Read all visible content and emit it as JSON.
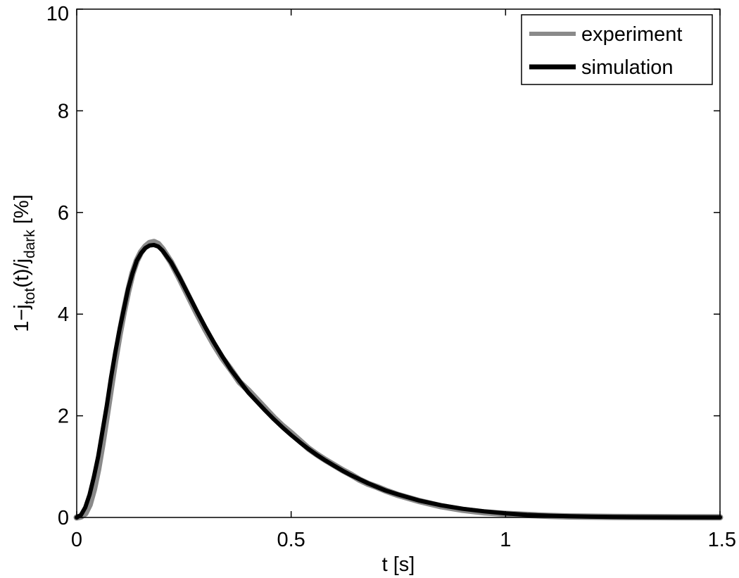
{
  "chart_data": {
    "type": "line",
    "title": "",
    "xlabel": "t [s]",
    "ylabel": {
      "parts": [
        "1−j",
        "tot",
        "(t)/j",
        "dark",
        " [%]"
      ]
    },
    "xlim": [
      0,
      1.5
    ],
    "ylim": [
      0,
      10
    ],
    "xticks": [
      0,
      0.5,
      1,
      1.5
    ],
    "xtick_labels": [
      "0",
      "0.5",
      "1",
      "1.5"
    ],
    "yticks": [
      0,
      2,
      4,
      6,
      8,
      10
    ],
    "ytick_labels": [
      "0",
      "2",
      "4",
      "6",
      "8",
      "10"
    ],
    "grid": false,
    "legend_position": "top-right",
    "colors": {
      "experiment": "#8a8a8a",
      "simulation": "#000000"
    },
    "series": [
      {
        "name": "experiment",
        "x": [
          0,
          0.01,
          0.02,
          0.03,
          0.04,
          0.05,
          0.06,
          0.07,
          0.08,
          0.09,
          0.1,
          0.11,
          0.12,
          0.13,
          0.14,
          0.15,
          0.16,
          0.17,
          0.18,
          0.19,
          0.2,
          0.22,
          0.24,
          0.26,
          0.28,
          0.3,
          0.32,
          0.34,
          0.36,
          0.38,
          0.4,
          0.42,
          0.44,
          0.46,
          0.48,
          0.5,
          0.52,
          0.54,
          0.56,
          0.58,
          0.6,
          0.62,
          0.64,
          0.66,
          0.68,
          0.7,
          0.72,
          0.75,
          0.8,
          0.85,
          0.9,
          0.95,
          1.0,
          1.05,
          1.1,
          1.15,
          1.2,
          1.25,
          1.3,
          1.4,
          1.5
        ],
        "y": [
          0,
          0.02,
          0.08,
          0.25,
          0.55,
          0.95,
          1.45,
          2.0,
          2.55,
          3.1,
          3.6,
          4.05,
          4.45,
          4.8,
          5.05,
          5.22,
          5.33,
          5.4,
          5.42,
          5.38,
          5.28,
          5.02,
          4.7,
          4.36,
          4.02,
          3.7,
          3.4,
          3.13,
          2.9,
          2.66,
          2.5,
          2.32,
          2.14,
          1.96,
          1.8,
          1.66,
          1.51,
          1.36,
          1.24,
          1.13,
          1.03,
          0.93,
          0.84,
          0.74,
          0.66,
          0.6,
          0.53,
          0.44,
          0.32,
          0.22,
          0.15,
          0.1,
          0.07,
          0.05,
          0.03,
          0.02,
          0.015,
          0.01,
          0.008,
          0.005,
          0.003
        ]
      },
      {
        "name": "simulation",
        "x": [
          0,
          0.01,
          0.02,
          0.03,
          0.04,
          0.05,
          0.06,
          0.07,
          0.08,
          0.09,
          0.1,
          0.11,
          0.12,
          0.13,
          0.14,
          0.15,
          0.16,
          0.17,
          0.18,
          0.19,
          0.2,
          0.22,
          0.24,
          0.26,
          0.28,
          0.3,
          0.32,
          0.34,
          0.36,
          0.38,
          0.4,
          0.42,
          0.44,
          0.46,
          0.48,
          0.5,
          0.52,
          0.54,
          0.56,
          0.58,
          0.6,
          0.62,
          0.64,
          0.66,
          0.68,
          0.7,
          0.72,
          0.75,
          0.8,
          0.85,
          0.9,
          0.95,
          1.0,
          1.05,
          1.1,
          1.15,
          1.2,
          1.25,
          1.3,
          1.4,
          1.5
        ],
        "y": [
          0,
          0.05,
          0.2,
          0.45,
          0.8,
          1.2,
          1.7,
          2.2,
          2.75,
          3.25,
          3.7,
          4.1,
          4.5,
          4.8,
          5.05,
          5.2,
          5.3,
          5.35,
          5.36,
          5.33,
          5.25,
          5.02,
          4.72,
          4.39,
          4.06,
          3.74,
          3.44,
          3.16,
          2.9,
          2.68,
          2.46,
          2.28,
          2.1,
          1.93,
          1.77,
          1.62,
          1.48,
          1.35,
          1.23,
          1.12,
          1.02,
          0.92,
          0.83,
          0.75,
          0.67,
          0.6,
          0.53,
          0.45,
          0.33,
          0.24,
          0.17,
          0.12,
          0.08,
          0.05,
          0.035,
          0.025,
          0.015,
          0.01,
          0.007,
          0.004,
          0.002
        ]
      }
    ]
  }
}
